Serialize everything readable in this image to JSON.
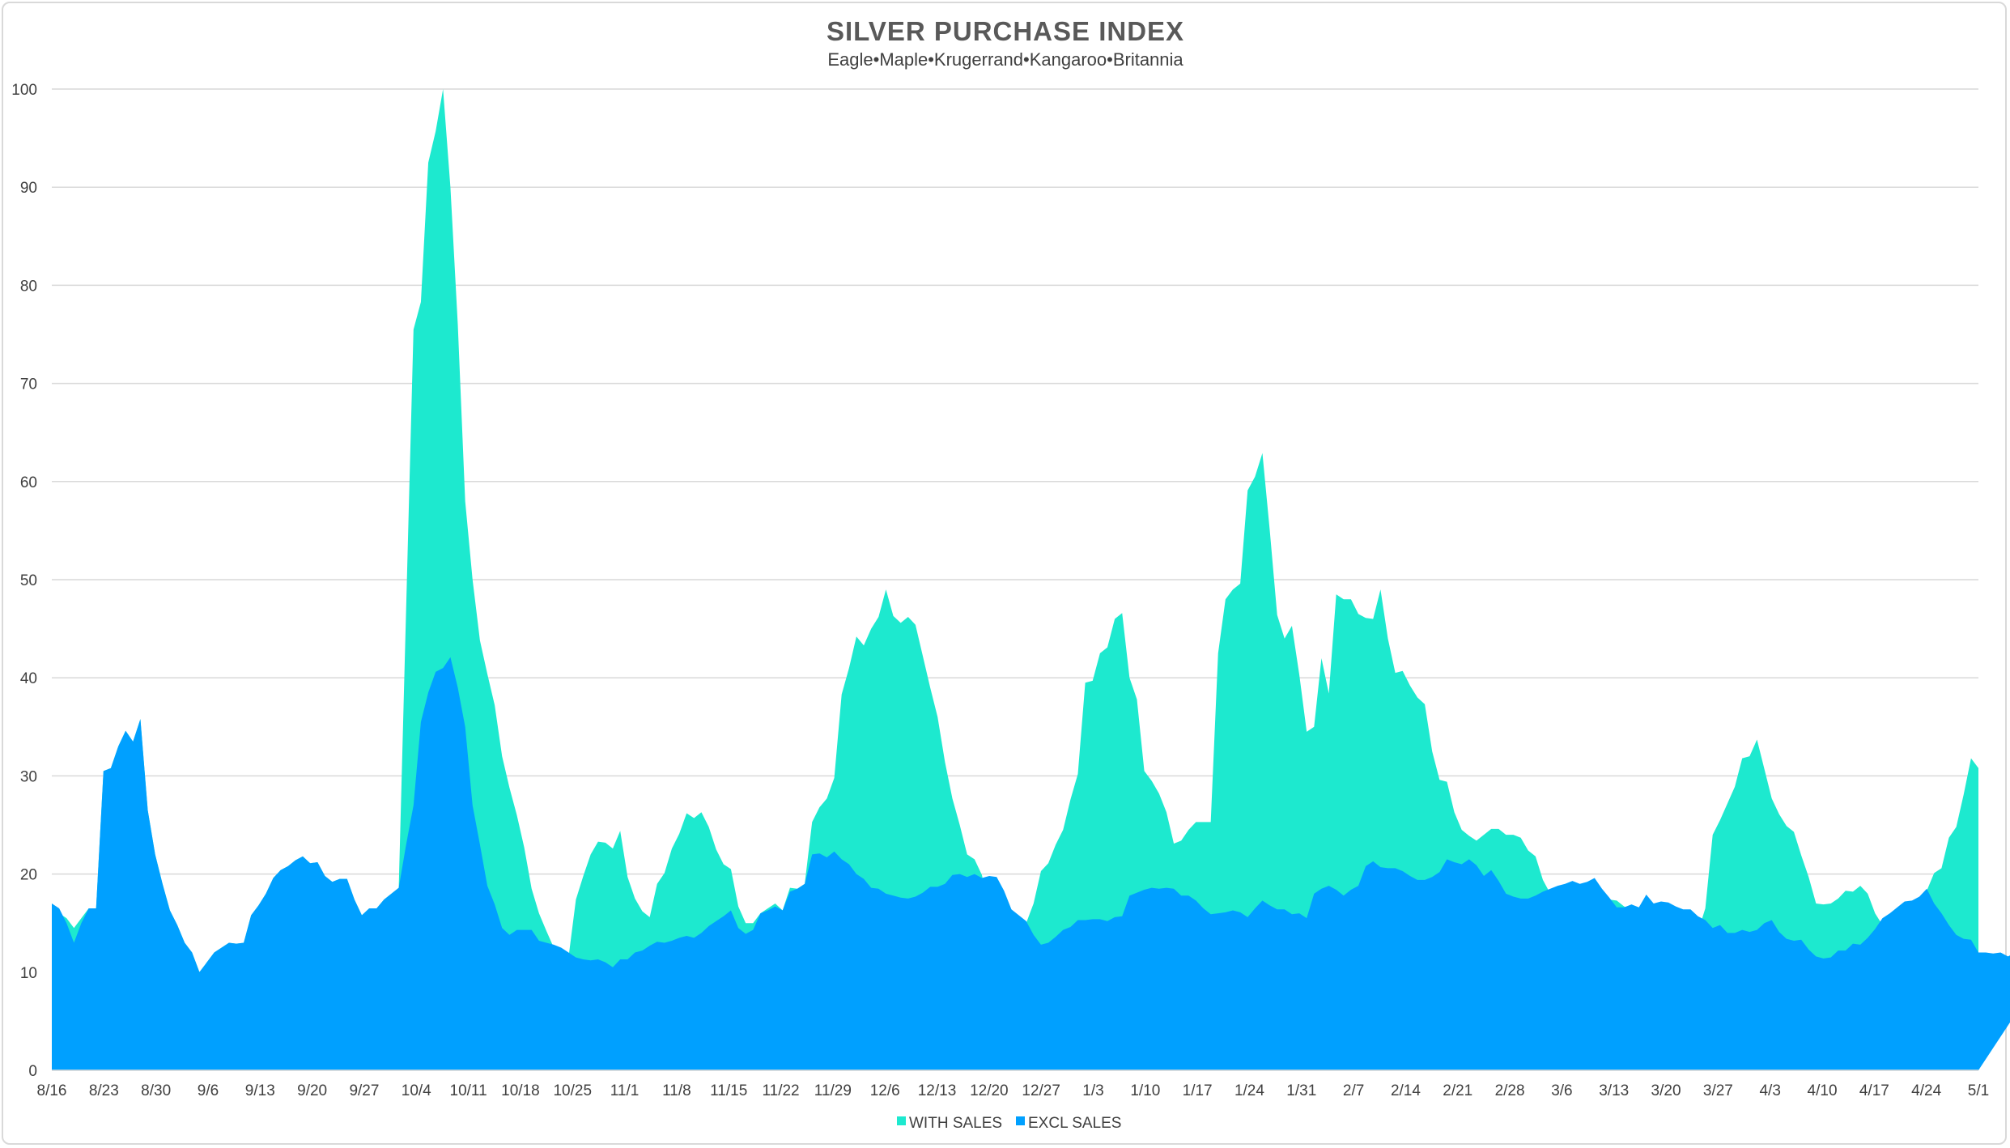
{
  "chart_data": {
    "type": "area",
    "title": "SILVER PURCHASE INDEX",
    "subtitle": "Eagle•Maple•Krugerrand•Kangaroo•Britannia",
    "xlabel": "",
    "ylabel": "",
    "ylim": [
      0,
      100
    ],
    "y_ticks": [
      0,
      10,
      20,
      30,
      40,
      50,
      60,
      70,
      80,
      90,
      100
    ],
    "grid": true,
    "legend_placement": "bottom-center",
    "x_tick_labels": [
      "8/16",
      "8/23",
      "8/30",
      "9/6",
      "9/13",
      "9/20",
      "9/27",
      "10/4",
      "10/11",
      "10/18",
      "10/25",
      "11/1",
      "11/8",
      "11/15",
      "11/22",
      "11/29",
      "12/6",
      "12/13",
      "12/20",
      "12/27",
      "1/3",
      "1/10",
      "1/17",
      "1/24",
      "1/31",
      "2/7",
      "2/14",
      "2/21",
      "2/28",
      "3/6",
      "3/13",
      "3/20",
      "3/27",
      "4/3",
      "4/10",
      "4/17",
      "4/24",
      "5/1"
    ],
    "series": [
      {
        "name": "WITH SALES",
        "color": "#1de9cf",
        "values": [
          17,
          16,
          15.5,
          14.5,
          15.5,
          16.5,
          16.5,
          30.5,
          30.8,
          33,
          34.6,
          33.5,
          35.8,
          26.5,
          22,
          19,
          16.3,
          14.8,
          13,
          12,
          10,
          11,
          12,
          12.5,
          13,
          12.9,
          13,
          15.8,
          16.8,
          18,
          19.6,
          20.4,
          20.8,
          21.4,
          21.8,
          21.1,
          21.2,
          19.8,
          19.2,
          19.5,
          19.5,
          17.4,
          15.8,
          16.5,
          16.5,
          17.4,
          18,
          18.6,
          47,
          75.5,
          78.3,
          92.5,
          95.7,
          100,
          90,
          76,
          58,
          50,
          43.8,
          40.4,
          37.2,
          32,
          28.8,
          26,
          22.7,
          18.5,
          16,
          14.2,
          12.5,
          11.9,
          11.5,
          17.4,
          19.8,
          22,
          23.3,
          23.2,
          22.6,
          24.4,
          19.7,
          17.5,
          16.2,
          15.6,
          19,
          20.1,
          22.6,
          24.1,
          26.2,
          25.7,
          26.3,
          24.8,
          22.5,
          21,
          20.5,
          16.7,
          15,
          15,
          16,
          16.5,
          17,
          16.3,
          18.6,
          18.5,
          19,
          25.3,
          26.8,
          27.7,
          29.8,
          38.3,
          41,
          44.2,
          43.3,
          45,
          46.2,
          49,
          46.3,
          45.6,
          46.2,
          45.4,
          42.2,
          39,
          36,
          31.4,
          27.7,
          25,
          22,
          21.5,
          19.9,
          16.4,
          15.3,
          14.3,
          12.7,
          13.1,
          15,
          17,
          20.3,
          21.1,
          23,
          24.5,
          27.6,
          30.2,
          39.5,
          39.7,
          42.5,
          43.1,
          46,
          46.6,
          40,
          37.8,
          30.5,
          29.5,
          28.2,
          26.3,
          23.1,
          23.4,
          24.5,
          25.3,
          25.3,
          25.3,
          42.5,
          48,
          49,
          49.6,
          59.1,
          60.5,
          62.9,
          55,
          46.4,
          44,
          45.3,
          40.3,
          34.5,
          35,
          42,
          38.4,
          48.5,
          48,
          48,
          46.5,
          46.1,
          46,
          49,
          44,
          40.5,
          40.7,
          39.2,
          38,
          37.3,
          32.5,
          29.6,
          29.4,
          26.3,
          24.5,
          23.9,
          23.4,
          24,
          24.6,
          24.6,
          24,
          24,
          23.7,
          22.4,
          21.8,
          19.4,
          18,
          17.3,
          17.3,
          17.1,
          17,
          17,
          17.5,
          17.2,
          17.4,
          17.3,
          16.7,
          16.4,
          16.4,
          15.7,
          15.3,
          14.8,
          14.5,
          14,
          14,
          14.3,
          14.1,
          16.5,
          24,
          25.5,
          27.2,
          28.9,
          31.8,
          32,
          33.7,
          30.7,
          27.7,
          26.1,
          24.9,
          24.3,
          21.9,
          19.7,
          17,
          16.9,
          17,
          17.5,
          18.3,
          18.2,
          18.8,
          18,
          16,
          14.8,
          13.8,
          13.4,
          13.3,
          12,
          17.2,
          18.3,
          20.1,
          20.6,
          23.7,
          24.8,
          28.1,
          31.8,
          30.8
        ]
      },
      {
        "name": "EXCL SALES",
        "color": "#00a0ff",
        "values": [
          17,
          16.5,
          15,
          13,
          15,
          16.5,
          16.5,
          30.5,
          30.8,
          33,
          34.6,
          33.5,
          35.8,
          26.5,
          22,
          19,
          16.3,
          14.8,
          13,
          12,
          10,
          11,
          12,
          12.5,
          13,
          12.9,
          13,
          15.8,
          16.8,
          18,
          19.6,
          20.4,
          20.8,
          21.4,
          21.8,
          21.1,
          21.2,
          19.8,
          19.2,
          19.5,
          19.5,
          17.4,
          15.8,
          16.5,
          16.5,
          17.4,
          18,
          18.6,
          23,
          27,
          35.5,
          38.5,
          40.6,
          41,
          42.1,
          39,
          35,
          27,
          23,
          18.8,
          16.9,
          14.5,
          13.8,
          14.3,
          14.3,
          14.3,
          13.2,
          13,
          12.8,
          12.5,
          12,
          11.5,
          11.3,
          11.2,
          11.3,
          11,
          10.5,
          11.3,
          11.3,
          12,
          12.2,
          12.7,
          13.1,
          13,
          13.2,
          13.5,
          13.7,
          13.5,
          14,
          14.7,
          15.2,
          15.7,
          16.3,
          14.5,
          13.9,
          14.3,
          16,
          16.3,
          16.7,
          16.3,
          18.2,
          18.5,
          19,
          22,
          22.1,
          21.7,
          22.3,
          21.5,
          21,
          20,
          19.5,
          18.6,
          18.5,
          18,
          17.8,
          17.6,
          17.5,
          17.7,
          18.1,
          18.7,
          18.7,
          19,
          19.9,
          20,
          19.7,
          20,
          19.6,
          19.8,
          19.7,
          18.3,
          16.4,
          15.8,
          15.2,
          13.8,
          12.8,
          13,
          13.6,
          14.3,
          14.6,
          15.3,
          15.3,
          15.4,
          15.4,
          15.2,
          15.6,
          15.7,
          17.8,
          18.1,
          18.4,
          18.6,
          18.5,
          18.6,
          18.5,
          17.8,
          17.8,
          17.3,
          16.5,
          15.9,
          16,
          16.1,
          16.3,
          16.1,
          15.6,
          16.5,
          17.3,
          16.8,
          16.4,
          16.4,
          15.9,
          16,
          15.5,
          18,
          18.5,
          18.8,
          18.4,
          17.8,
          18.4,
          18.8,
          20.8,
          21.3,
          20.7,
          20.6,
          20.6,
          20.3,
          19.8,
          19.4,
          19.4,
          19.7,
          20.2,
          21.5,
          21.2,
          21,
          21.5,
          20.9,
          19.8,
          20.4,
          19.3,
          18,
          17.7,
          17.5,
          17.5,
          17.8,
          18.2,
          18.5,
          18.8,
          19,
          19.3,
          19,
          19.2,
          19.6,
          18.5,
          17.6,
          16.6,
          16.6,
          16.9,
          16.6,
          17.9,
          17,
          17.2,
          17.1,
          16.7,
          16.4,
          16.4,
          15.7,
          15.3,
          14.5,
          14.8,
          14,
          14,
          14.3,
          14.1,
          14.3,
          15,
          15.3,
          14.1,
          13.4,
          13.2,
          13.3,
          12.3,
          11.6,
          11.4,
          11.5,
          12.2,
          12.2,
          12.9,
          12.8,
          13.5,
          14.4,
          15.5,
          16,
          16.6,
          17.2,
          17.3,
          17.7,
          18.5,
          17,
          16,
          14.8,
          13.8,
          13.4,
          13.3,
          12,
          12,
          11.9,
          12,
          11.6,
          12,
          11.3,
          10.8,
          10.6,
          11.5,
          11.4
        ]
      }
    ]
  }
}
